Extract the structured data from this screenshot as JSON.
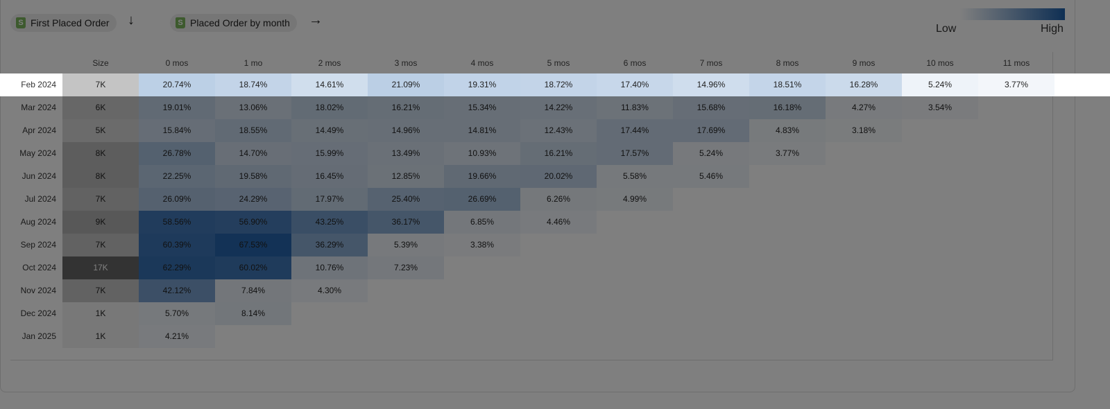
{
  "controls": {
    "row_dimension": "First Placed Order",
    "row_arrow": "↓",
    "col_dimension": "Placed Order by month",
    "col_arrow": "→",
    "shop_icon": "S"
  },
  "legend": {
    "low": "Low",
    "high": "High",
    "low_color": "#ffffff",
    "high_color": "#1e5fa8"
  },
  "columns": [
    "Size",
    "0 mos",
    "1 mo",
    "2 mos",
    "3 mos",
    "4 mos",
    "5 mos",
    "6 mos",
    "7 mos",
    "8 mos",
    "9 mos",
    "10 mos",
    "11 mos"
  ],
  "highlighted_row": "Feb 2024",
  "rows": [
    {
      "cohort": "Feb 2024",
      "size": "7K",
      "values": [
        "20.74%",
        "18.74%",
        "14.61%",
        "21.09%",
        "19.31%",
        "18.72%",
        "17.40%",
        "14.96%",
        "18.51%",
        "16.28%",
        "5.24%",
        "3.77%"
      ]
    },
    {
      "cohort": "Mar 2024",
      "size": "6K",
      "values": [
        "19.01%",
        "13.06%",
        "18.02%",
        "16.21%",
        "15.34%",
        "14.22%",
        "11.83%",
        "15.68%",
        "16.18%",
        "4.27%",
        "3.54%"
      ]
    },
    {
      "cohort": "Apr 2024",
      "size": "5K",
      "values": [
        "15.84%",
        "18.55%",
        "14.49%",
        "14.96%",
        "14.81%",
        "12.43%",
        "17.44%",
        "17.69%",
        "4.83%",
        "3.18%"
      ]
    },
    {
      "cohort": "May 2024",
      "size": "8K",
      "values": [
        "26.78%",
        "14.70%",
        "15.99%",
        "13.49%",
        "10.93%",
        "16.21%",
        "17.57%",
        "5.24%",
        "3.77%"
      ]
    },
    {
      "cohort": "Jun 2024",
      "size": "8K",
      "values": [
        "22.25%",
        "19.58%",
        "16.45%",
        "12.85%",
        "19.66%",
        "20.02%",
        "5.58%",
        "5.46%"
      ]
    },
    {
      "cohort": "Jul 2024",
      "size": "7K",
      "values": [
        "26.09%",
        "24.29%",
        "17.97%",
        "25.40%",
        "26.69%",
        "6.26%",
        "4.99%"
      ]
    },
    {
      "cohort": "Aug 2024",
      "size": "9K",
      "values": [
        "58.56%",
        "56.90%",
        "43.25%",
        "36.17%",
        "6.85%",
        "4.46%"
      ]
    },
    {
      "cohort": "Sep 2024",
      "size": "7K",
      "values": [
        "60.39%",
        "67.53%",
        "36.29%",
        "5.39%",
        "3.38%"
      ]
    },
    {
      "cohort": "Oct 2024",
      "size": "17K",
      "values": [
        "62.29%",
        "60.02%",
        "10.76%",
        "7.23%"
      ]
    },
    {
      "cohort": "Nov 2024",
      "size": "7K",
      "values": [
        "42.12%",
        "7.84%",
        "4.30%"
      ]
    },
    {
      "cohort": "Dec 2024",
      "size": "1K",
      "values": [
        "5.70%",
        "8.14%"
      ]
    },
    {
      "cohort": "Jan 2025",
      "size": "1K",
      "values": [
        "4.21%"
      ]
    }
  ]
}
